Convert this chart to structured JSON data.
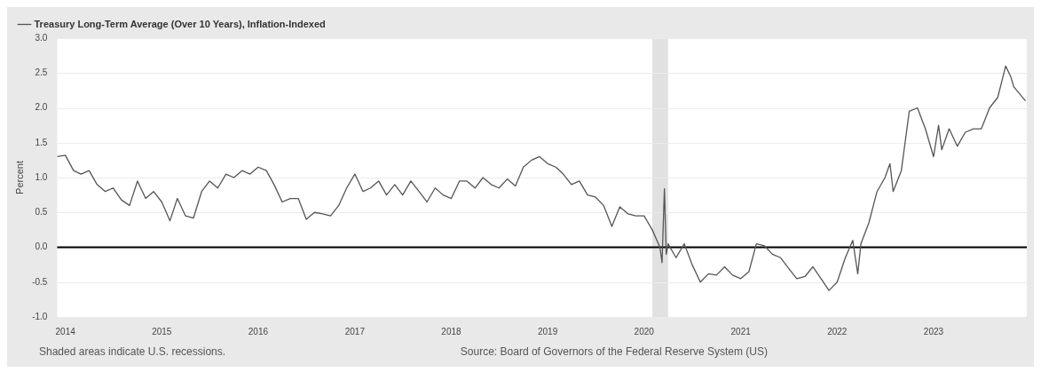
{
  "chart_data": {
    "type": "line",
    "legend": "top left",
    "ylabel": "Percent",
    "grid": "y",
    "marker": "none",
    "line_style": "solid",
    "annotations": [
      "Shaded areas indicate U.S. recessions.",
      "Source: Board of Governors of the Federal Reserve System (US)"
    ],
    "xlim": [
      "2013-12-01",
      "2023-12-20"
    ],
    "xticks": [
      "2014",
      "2015",
      "2016",
      "2017",
      "2018",
      "2019",
      "2020",
      "2021",
      "2022",
      "2023"
    ],
    "ylim": [
      -1,
      3
    ],
    "yticks": [
      {
        "value": -1,
        "label": "-1.0"
      },
      -0.5,
      {
        "value": 0,
        "label": "0.0"
      },
      0.5,
      {
        "value": 1,
        "label": "1.0"
      },
      1.5,
      {
        "value": 2,
        "label": "2.0"
      },
      2.5,
      {
        "value": 3,
        "label": "3.0"
      }
    ],
    "ref_lines": [
      {
        "axis": "y",
        "value": 0,
        "color": "#000000"
      }
    ],
    "bands": [
      {
        "axis": "x",
        "from": "2020-02",
        "to": "2020-04",
        "color": "#e1e1e1"
      }
    ],
    "x": [
      "2013-12-01",
      "2014-01",
      "2014-02",
      "2014-03",
      "2014-04",
      "2014-05",
      "2014-06",
      "2014-07",
      "2014-08",
      "2014-09",
      "2014-10",
      "2014-11",
      "2014-12",
      "2015-01",
      "2015-02",
      "2015-03",
      "2015-04",
      "2015-05",
      "2015-06",
      "2015-07",
      "2015-08",
      "2015-09",
      "2015-10",
      "2015-11",
      "2015-12",
      "2016-01",
      "2016-02",
      "2016-03",
      "2016-04",
      "2016-05",
      "2016-06",
      "2016-07",
      "2016-08",
      "2016-09",
      "2016-10",
      "2016-11",
      "2016-12",
      "2017-01",
      "2017-02",
      "2017-03",
      "2017-04",
      "2017-05",
      "2017-06",
      "2017-07",
      "2017-08",
      "2017-09",
      "2017-10",
      "2017-11",
      "2017-12",
      "2018-01",
      "2018-02",
      "2018-03",
      "2018-04",
      "2018-05",
      "2018-06",
      "2018-07",
      "2018-08",
      "2018-09",
      "2018-10",
      "2018-11",
      "2018-12",
      "2019-01",
      "2019-02",
      "2019-03",
      "2019-04",
      "2019-05",
      "2019-06",
      "2019-07",
      "2019-08",
      "2019-09",
      "2019-10",
      "2019-11",
      "2019-12",
      "2020-01",
      "2020-02",
      "2020-03-01",
      "2020-03-09",
      "2020-03-18",
      "2020-03-25",
      "2020-04",
      "2020-05",
      "2020-06",
      "2020-07",
      "2020-08",
      "2020-09",
      "2020-10",
      "2020-11",
      "2020-12",
      "2021-01",
      "2021-02",
      "2021-03",
      "2021-04",
      "2021-05",
      "2021-06",
      "2021-07",
      "2021-08",
      "2021-09",
      "2021-10",
      "2021-11",
      "2021-12",
      "2022-01",
      "2022-02",
      "2022-03",
      "2022-03-20",
      "2022-04",
      "2022-05",
      "2022-06",
      "2022-07",
      "2022-07-20",
      "2022-08",
      "2022-09",
      "2022-10",
      "2022-11",
      "2022-12",
      "2023-01",
      "2023-01-20",
      "2023-02",
      "2023-03",
      "2023-04",
      "2023-05",
      "2023-06",
      "2023-07",
      "2023-08",
      "2023-09",
      "2023-10",
      "2023-10-20",
      "2023-11",
      "2023-12-15"
    ],
    "series": [
      {
        "name": "Treasury Long-Term Average (Over 10 Years), Inflation-Indexed",
        "color": "#555555",
        "values": [
          1.3,
          1.32,
          1.1,
          1.05,
          1.1,
          0.9,
          0.8,
          0.85,
          0.68,
          0.6,
          0.95,
          0.7,
          0.8,
          0.65,
          0.38,
          0.7,
          0.45,
          0.42,
          0.8,
          0.95,
          0.85,
          1.05,
          1.0,
          1.1,
          1.05,
          1.15,
          1.1,
          0.9,
          0.65,
          0.7,
          0.7,
          0.4,
          0.5,
          0.48,
          0.45,
          0.6,
          0.85,
          1.05,
          0.8,
          0.85,
          0.95,
          0.75,
          0.9,
          0.75,
          0.95,
          0.8,
          0.65,
          0.85,
          0.75,
          0.7,
          0.95,
          0.95,
          0.85,
          1.0,
          0.9,
          0.85,
          0.98,
          0.88,
          1.15,
          1.25,
          1.3,
          1.2,
          1.15,
          1.05,
          0.9,
          0.95,
          0.75,
          0.72,
          0.6,
          0.3,
          0.58,
          0.48,
          0.45,
          0.45,
          0.25,
          0.0,
          -0.22,
          0.84,
          -0.1,
          0.05,
          -0.15,
          0.05,
          -0.25,
          -0.5,
          -0.38,
          -0.4,
          -0.28,
          -0.4,
          -0.45,
          -0.35,
          0.05,
          0.02,
          -0.1,
          -0.15,
          -0.3,
          -0.45,
          -0.42,
          -0.28,
          -0.45,
          -0.62,
          -0.5,
          -0.15,
          0.1,
          -0.38,
          0.05,
          0.35,
          0.8,
          1.0,
          1.2,
          0.8,
          1.1,
          1.95,
          2.0,
          1.7,
          1.3,
          1.75,
          1.4,
          1.7,
          1.45,
          1.65,
          1.7,
          1.7,
          2.0,
          2.15,
          2.6,
          2.45,
          2.3,
          2.1
        ]
      }
    ]
  }
}
